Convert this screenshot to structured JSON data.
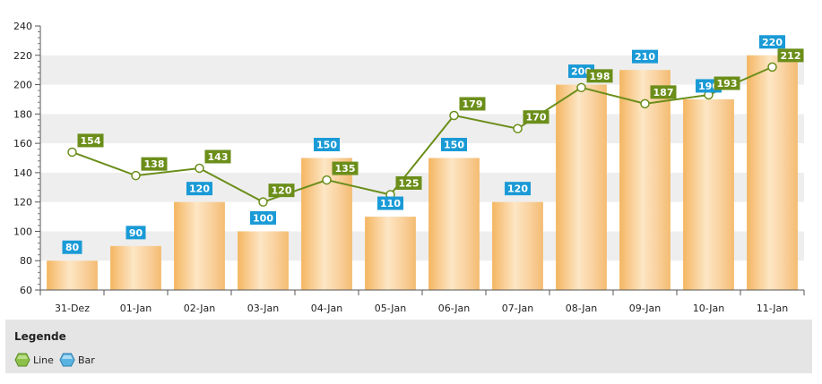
{
  "chart_data": {
    "type": "bar",
    "categories": [
      "31-Dez",
      "01-Jan",
      "02-Jan",
      "03-Jan",
      "04-Jan",
      "05-Jan",
      "06-Jan",
      "07-Jan",
      "08-Jan",
      "09-Jan",
      "10-Jan",
      "11-Jan"
    ],
    "series": [
      {
        "name": "Bar",
        "type": "bar",
        "color": "#f8c27a",
        "label_color": "#1a9ad6",
        "values": [
          80,
          90,
          120,
          100,
          150,
          110,
          150,
          120,
          200,
          210,
          190,
          220
        ]
      },
      {
        "name": "Line",
        "type": "line",
        "color": "#6b8e1a",
        "label_color": "#6b8e1a",
        "values": [
          154,
          138,
          143,
          120,
          135,
          125,
          179,
          170,
          198,
          187,
          193,
          212
        ]
      }
    ],
    "ylim": [
      60,
      240
    ],
    "yticks": [
      60,
      80,
      100,
      120,
      140,
      160,
      180,
      200,
      220,
      240
    ],
    "grid": true,
    "legend_position": "bottom-left"
  },
  "legend": {
    "title": "Legende",
    "items": [
      {
        "label": "Line",
        "icon": "green-hexagon-icon",
        "color": "#7aa83a"
      },
      {
        "label": "Bar",
        "icon": "blue-hexagon-icon",
        "color": "#4aa9d8"
      }
    ]
  }
}
